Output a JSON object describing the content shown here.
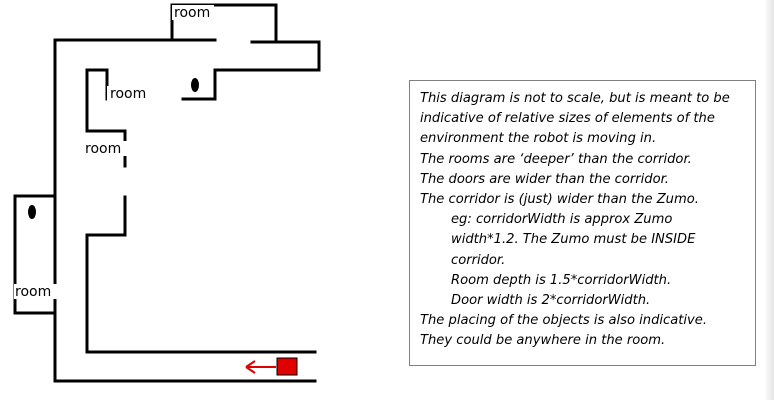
{
  "diagram": {
    "room_labels": [
      "room",
      "room",
      "room",
      "room"
    ],
    "colors": {
      "walls": "#000000",
      "robot": "#e00000",
      "arrow": "#e00000",
      "notes_border": "#7f7f7f"
    },
    "icons": {
      "robot": "zumo-robot",
      "direction": "left-arrow",
      "object": "black-oval-object"
    }
  },
  "notes": {
    "lines": [
      "This diagram is not to scale, but is meant to be",
      "indicative of relative sizes of elements of the",
      "environment the robot is moving in.",
      "The rooms are ‘deeper’ than the corridor.",
      "The doors are wider than the corridor.",
      "The corridor is (just) wider than the Zumo.",
      "eg: corridorWidth is approx Zumo",
      "width*1.2. The Zumo must be INSIDE",
      "corridor.",
      "Room depth is 1.5*corridorWidth.",
      "Door width is 2*corridorWidth.",
      "The placing of the objects is also indicative.",
      "They could be anywhere in the room."
    ]
  }
}
